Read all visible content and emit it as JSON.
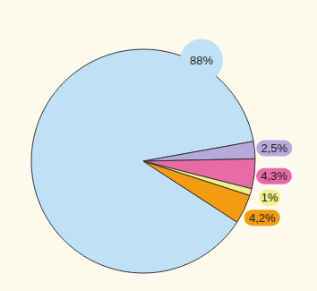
{
  "chart_data": {
    "type": "pie",
    "values": [
      88,
      2.5,
      4.3,
      1,
      4.2
    ],
    "value_labels": [
      "88%",
      "2,5%",
      "4,3%",
      "1%",
      "4,2%"
    ],
    "colors": [
      "#bfe0f5",
      "#b7a9d9",
      "#e86aa6",
      "#f2ee8a",
      "#f39c12"
    ],
    "data_labels": true
  }
}
